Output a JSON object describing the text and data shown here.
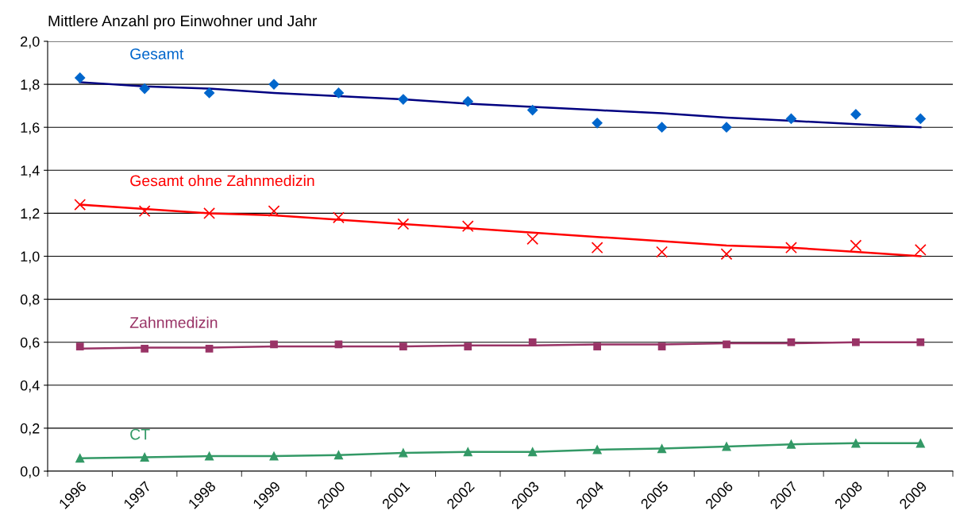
{
  "chart_data": {
    "type": "line",
    "ylabel": "Mittlere Anzahl pro Einwohner und Jahr",
    "categories": [
      "1996",
      "1997",
      "1998",
      "1999",
      "2000",
      "2001",
      "2002",
      "2003",
      "2004",
      "2005",
      "2006",
      "2007",
      "2008",
      "2009"
    ],
    "series": [
      {
        "name": "Gesamt",
        "type": "scatter",
        "marker": "diamond",
        "color": "#0066cc",
        "values": [
          1.83,
          1.78,
          1.76,
          1.8,
          1.76,
          1.73,
          1.72,
          1.68,
          1.62,
          1.6,
          1.6,
          1.64,
          1.66,
          1.64
        ]
      },
      {
        "type": "line",
        "marker": "none",
        "color": "#000080",
        "values": [
          1.81,
          1.79,
          1.78,
          1.76,
          1.745,
          1.73,
          1.71,
          1.695,
          1.68,
          1.665,
          1.645,
          1.63,
          1.615,
          1.6
        ]
      },
      {
        "name": "Gesamt ohne Zahnmedizin",
        "type": "scatter",
        "marker": "cross",
        "color": "#ff0000",
        "values": [
          1.24,
          1.21,
          1.2,
          1.21,
          1.18,
          1.15,
          1.14,
          1.08,
          1.04,
          1.02,
          1.01,
          1.04,
          1.05,
          1.03
        ]
      },
      {
        "type": "line",
        "marker": "none",
        "color": "#ff0000",
        "values": [
          1.24,
          1.22,
          1.2,
          1.19,
          1.17,
          1.15,
          1.13,
          1.11,
          1.09,
          1.07,
          1.05,
          1.04,
          1.02,
          1.0
        ]
      },
      {
        "name": "Zahnmedizin",
        "type": "scatter",
        "marker": "square",
        "color": "#993366",
        "values": [
          0.58,
          0.57,
          0.57,
          0.59,
          0.59,
          0.58,
          0.58,
          0.6,
          0.58,
          0.58,
          0.59,
          0.6,
          0.6,
          0.6
        ]
      },
      {
        "type": "line",
        "marker": "none",
        "color": "#993366",
        "values": [
          0.57,
          0.575,
          0.575,
          0.58,
          0.58,
          0.58,
          0.585,
          0.585,
          0.59,
          0.59,
          0.595,
          0.595,
          0.6,
          0.6
        ]
      },
      {
        "name": "CT",
        "marker": "triangle",
        "color": "#339966",
        "values": [
          0.06,
          0.065,
          0.07,
          0.07,
          0.075,
          0.085,
          0.09,
          0.09,
          0.1,
          0.105,
          0.115,
          0.125,
          0.13,
          0.13
        ]
      }
    ],
    "ylim": [
      0,
      2.0
    ],
    "yticks": [
      {
        "value": 0,
        "label": "0,0"
      },
      {
        "value": 0.2,
        "label": "0,2"
      },
      {
        "value": 0.4,
        "label": "0,4"
      },
      {
        "value": 0.6,
        "label": "0,6"
      },
      {
        "value": 0.8,
        "label": "0,8"
      },
      {
        "value": 1.0,
        "label": "1,0"
      },
      {
        "value": 1.2,
        "label": "1,2"
      },
      {
        "value": 1.4,
        "label": "1,4"
      },
      {
        "value": 1.6,
        "label": "1,6"
      },
      {
        "value": 1.8,
        "label": "1,8"
      },
      {
        "value": 2.0,
        "label": "2,0"
      }
    ],
    "grid": "y",
    "legend": false
  }
}
